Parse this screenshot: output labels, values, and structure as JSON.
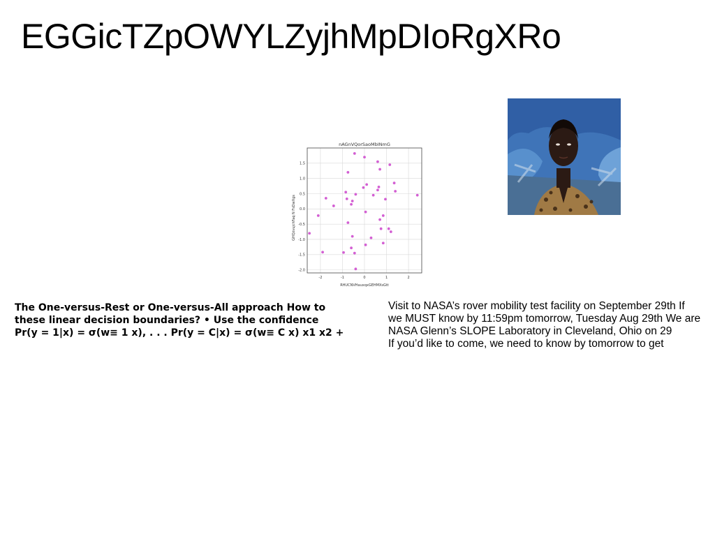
{
  "page": {
    "title": "EGGicTZpOWYLZyjhMpDIoRgXRo"
  },
  "photo": {
    "alt": "Portrait of a person in a leopard-print shirt in front of a blue painted background",
    "colors": {
      "background": "#3f74b8",
      "skin": "#2b1a14",
      "shirt": "#a07a45"
    }
  },
  "left_text": {
    "lines": [
      "The One-versus-Rest or One-versus-All approach How to",
      "these linear decision boundaries? • Use the confidence",
      "Pr(y = 1|x) = σ(w≡ 1 x), . . . Pr(y = C|x) = σ(w≡ C x) x1 x2 +"
    ]
  },
  "right_text": {
    "lines": [
      "Visit to NASA’s rover mobility test facility on September 29th If",
      "we MUST know by 11:59pm tomorrow, Tuesday Aug 29th We are",
      "NASA Glenn’s SLOPE Laboratory in Cleveland, Ohio on 29",
      "If you’d like to come, we need to know by tomorrow to get"
    ]
  },
  "chart_data": {
    "type": "scatter",
    "title": "nAGnVQorSaoMbINmG",
    "xlabel": "RHUCNVHauxqxGEHMXsGtt",
    "ylabel": "GHQzvujchFaq N FsDwXgs",
    "xlim": [
      -2.6,
      2.6
    ],
    "ylim": [
      -2.1,
      2.0
    ],
    "xticks": [
      "-2",
      "-1",
      "0",
      "1",
      "2"
    ],
    "yticks": [
      "1.5",
      "1.0",
      "0.5",
      "0.0",
      "-0.5",
      "-1.0",
      "-1.5",
      "-2.0"
    ],
    "grid": true,
    "marker_color": "#d35fd3",
    "points": [
      {
        "x": -0.45,
        "y": 1.82
      },
      {
        "x": 0.0,
        "y": 1.7
      },
      {
        "x": 0.6,
        "y": 1.55
      },
      {
        "x": 1.15,
        "y": 1.45
      },
      {
        "x": 0.7,
        "y": 1.3
      },
      {
        "x": -0.75,
        "y": 1.2
      },
      {
        "x": 1.35,
        "y": 0.85
      },
      {
        "x": 0.1,
        "y": 0.8
      },
      {
        "x": -0.05,
        "y": 0.7
      },
      {
        "x": 0.65,
        "y": 0.72
      },
      {
        "x": 0.6,
        "y": 0.62
      },
      {
        "x": 1.4,
        "y": 0.58
      },
      {
        "x": -0.85,
        "y": 0.55
      },
      {
        "x": -0.4,
        "y": 0.48
      },
      {
        "x": 0.4,
        "y": 0.45
      },
      {
        "x": 2.4,
        "y": 0.45
      },
      {
        "x": -1.75,
        "y": 0.35
      },
      {
        "x": -0.8,
        "y": 0.33
      },
      {
        "x": 0.95,
        "y": 0.32
      },
      {
        "x": -0.55,
        "y": 0.26
      },
      {
        "x": -0.6,
        "y": 0.15
      },
      {
        "x": -1.4,
        "y": 0.1
      },
      {
        "x": 0.05,
        "y": -0.1
      },
      {
        "x": -2.1,
        "y": -0.22
      },
      {
        "x": 0.85,
        "y": -0.22
      },
      {
        "x": 0.7,
        "y": -0.35
      },
      {
        "x": -0.75,
        "y": -0.45
      },
      {
        "x": 0.75,
        "y": -0.65
      },
      {
        "x": 1.1,
        "y": -0.65
      },
      {
        "x": 1.2,
        "y": -0.75
      },
      {
        "x": -2.5,
        "y": -0.8
      },
      {
        "x": -0.55,
        "y": -0.9
      },
      {
        "x": 0.3,
        "y": -0.95
      },
      {
        "x": 0.85,
        "y": -1.12
      },
      {
        "x": 0.05,
        "y": -1.18
      },
      {
        "x": -0.6,
        "y": -1.28
      },
      {
        "x": -1.9,
        "y": -1.42
      },
      {
        "x": -0.95,
        "y": -1.43
      },
      {
        "x": -0.45,
        "y": -1.45
      },
      {
        "x": -0.4,
        "y": -1.97
      }
    ]
  }
}
